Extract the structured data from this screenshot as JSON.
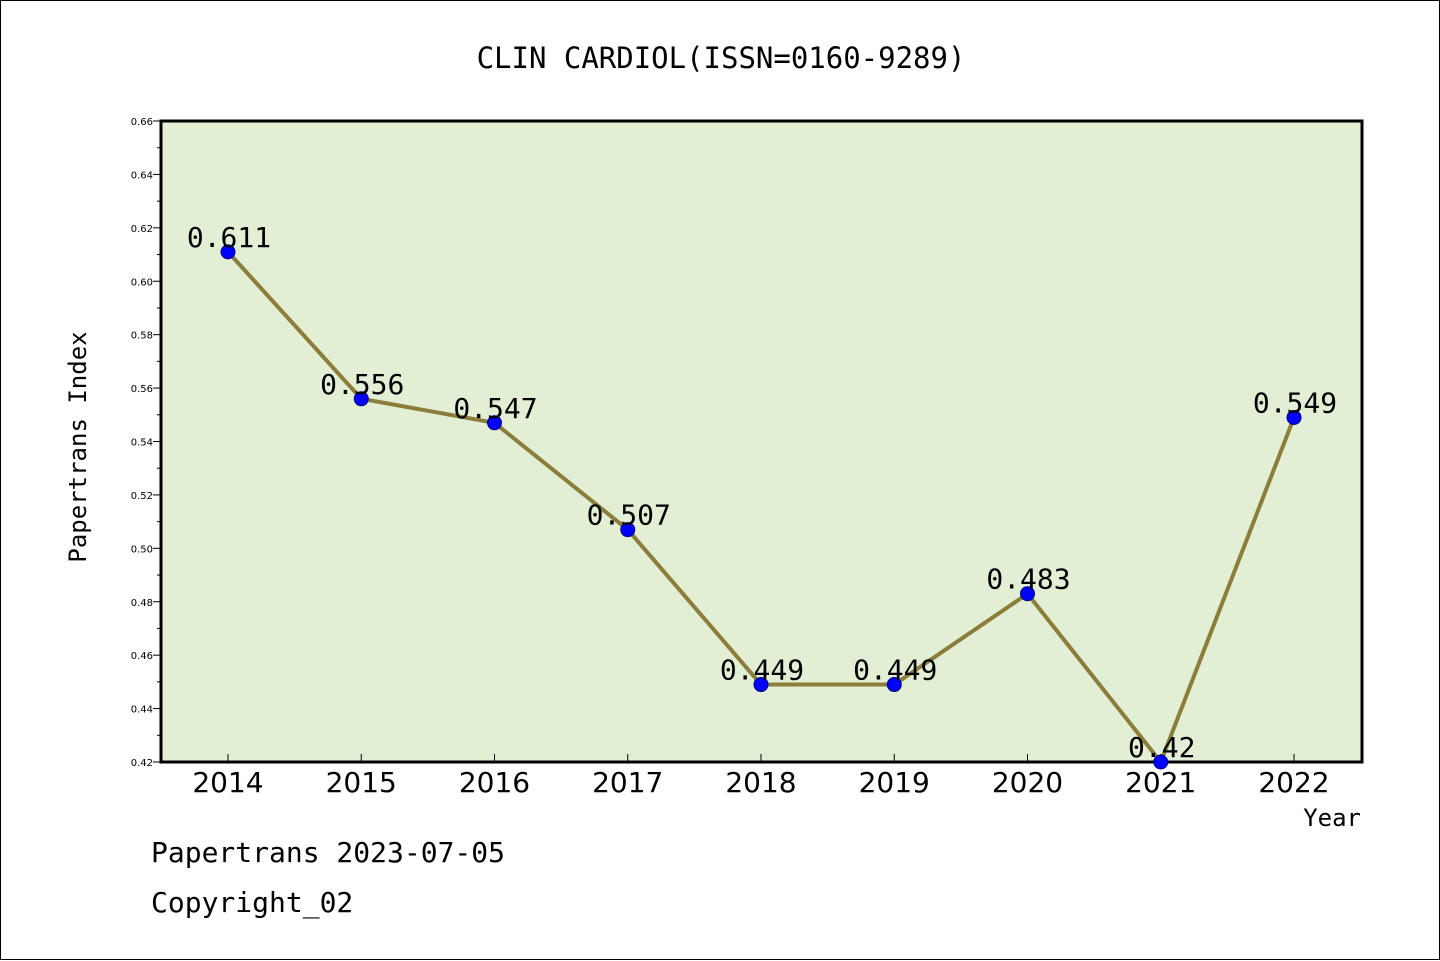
{
  "footer": {
    "line1": "Papertrans 2023-07-05",
    "line2": "Copyright_02"
  },
  "chart_data": {
    "type": "line",
    "title": "CLIN CARDIOL(ISSN=0160-9289)",
    "xlabel": "Year",
    "ylabel": "Papertrans Index",
    "categories": [
      "2014",
      "2015",
      "2016",
      "2017",
      "2018",
      "2019",
      "2020",
      "2021",
      "2022"
    ],
    "values": [
      0.611,
      0.556,
      0.547,
      0.507,
      0.449,
      0.449,
      0.483,
      0.42,
      0.549
    ],
    "value_labels": [
      "0.611",
      "0.556",
      "0.547",
      "0.507",
      "0.449",
      "0.449",
      "0.483",
      "0.42",
      "0.549"
    ],
    "y_ticks": [
      "0.42",
      "0.44",
      "0.46",
      "0.48",
      "0.50",
      "0.52",
      "0.54",
      "0.56",
      "0.58",
      "0.60",
      "0.62",
      "0.64",
      "0.66"
    ],
    "ylim": [
      0.42,
      0.66
    ],
    "grid": false,
    "colors": {
      "plot_background": "#e2efd4",
      "line": "#8b7d3a",
      "marker": "#0000ff",
      "marker_edge": "#000080"
    }
  }
}
